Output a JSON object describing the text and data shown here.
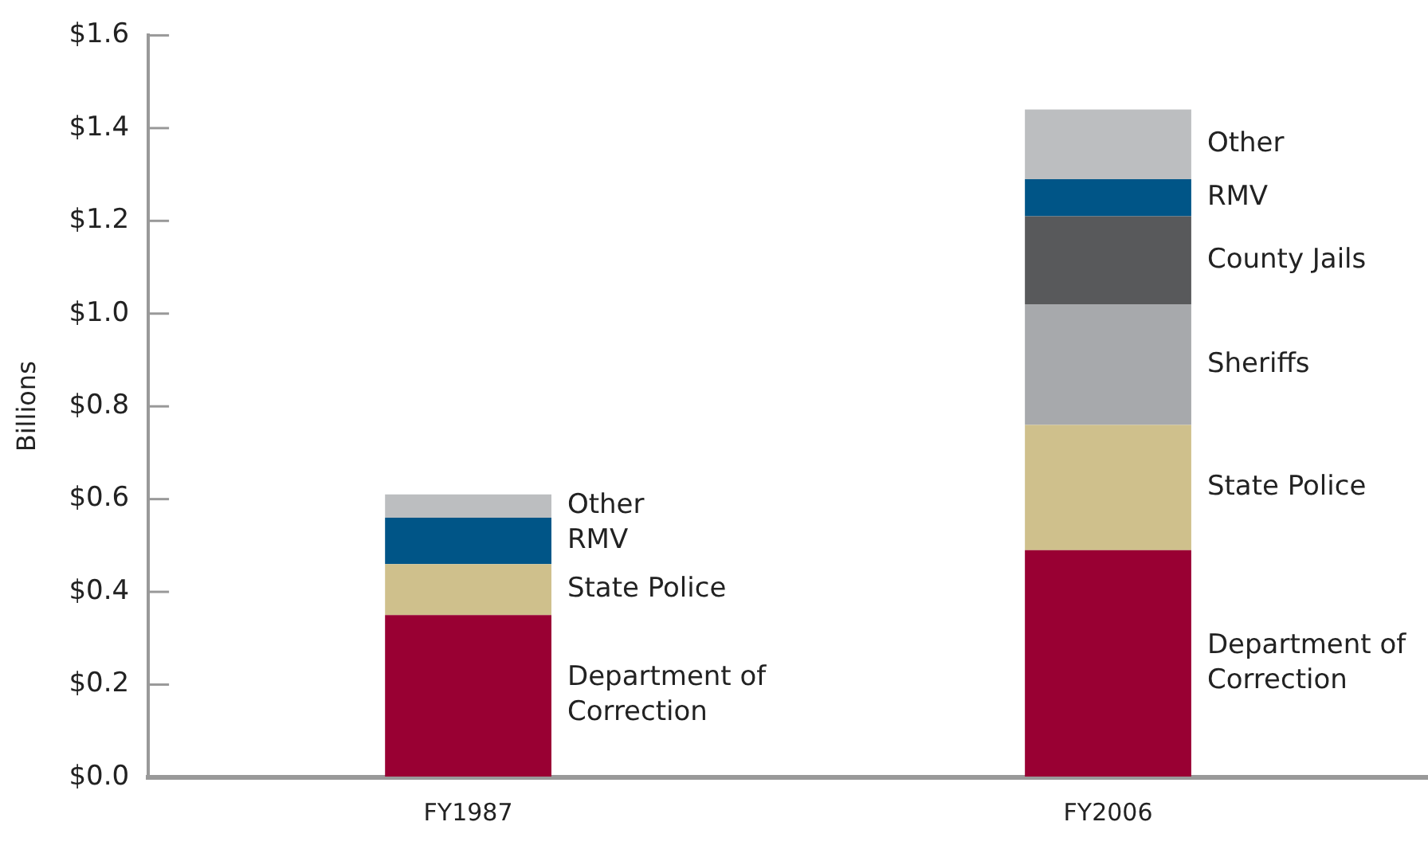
{
  "chart_data": {
    "type": "bar",
    "stacked": true,
    "ylabel": "Billions",
    "categories": [
      "FY1987",
      "FY2006"
    ],
    "series": [
      {
        "name": "Department of Correction",
        "color": "#990033",
        "values": [
          0.35,
          0.49
        ]
      },
      {
        "name": "State Police",
        "color": "#cfc08c",
        "values": [
          0.11,
          0.27
        ]
      },
      {
        "name": "Sheriffs",
        "color": "#a7a9ac",
        "values": [
          null,
          0.26
        ]
      },
      {
        "name": "County Jails",
        "color": "#58595b",
        "values": [
          null,
          0.19
        ]
      },
      {
        "name": "RMV",
        "color": "#005587",
        "values": [
          0.1,
          0.08
        ]
      },
      {
        "name": "Other",
        "color": "#bcbec0",
        "values": [
          0.05,
          0.15
        ]
      }
    ],
    "ylim": [
      0,
      1.6
    ],
    "yticks": [
      {
        "value": 0,
        "label": "$0.0"
      },
      {
        "value": 0.2,
        "label": "$0.2"
      },
      {
        "value": 0.4,
        "label": "$0.4"
      },
      {
        "value": 0.6,
        "label": "$0.6"
      },
      {
        "value": 0.8,
        "label": "$0.8"
      },
      {
        "value": 1.0,
        "label": "$1.0"
      },
      {
        "value": 1.2,
        "label": "$1.2"
      },
      {
        "value": 1.4,
        "label": "$1.4"
      },
      {
        "value": 1.6,
        "label": "$1.6"
      }
    ],
    "grid": false,
    "legend": false
  }
}
